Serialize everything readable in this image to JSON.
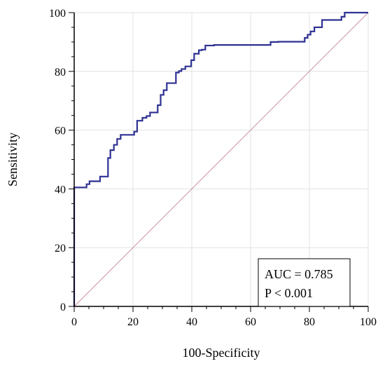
{
  "chart_data": {
    "type": "line",
    "title": "",
    "xlabel": "100-Specificity",
    "ylabel": "Sensitivity",
    "xlim": [
      0,
      100
    ],
    "ylim": [
      0,
      100
    ],
    "xticks": [
      0,
      20,
      40,
      60,
      80,
      100
    ],
    "yticks": [
      0,
      20,
      40,
      60,
      80,
      100
    ],
    "grid": true,
    "series": [
      {
        "name": "",
        "style": "step",
        "color": "#2e3192",
        "x": [
          0,
          0,
          4.2,
          4.2,
          5.2,
          5.2,
          8.8,
          8.8,
          11.5,
          11.5,
          12.3,
          12.3,
          13.5,
          13.5,
          14.6,
          14.6,
          15.8,
          15.8,
          20.4,
          20.4,
          21.4,
          21.4,
          23.2,
          23.2,
          24.6,
          24.6,
          25.8,
          25.8,
          28.4,
          28.4,
          29.4,
          29.4,
          30.4,
          30.4,
          31.5,
          31.5,
          34.6,
          34.6,
          35.6,
          35.6,
          36.5,
          36.5,
          37.8,
          37.8,
          39.8,
          39.8,
          40.8,
          40.8,
          42.4,
          42.4,
          43.4,
          43.4,
          44.6,
          44.6,
          47.6,
          47.6,
          66.8,
          66.8,
          69.4,
          69.4,
          78.4,
          78.4,
          79.4,
          79.4,
          80.4,
          80.4,
          81.7,
          81.7,
          84.3,
          84.3,
          90.9,
          90.9,
          92.0,
          92.0,
          93.0,
          93.0,
          100
        ],
        "y": [
          0,
          40.5,
          40.5,
          41.6,
          41.6,
          42.6,
          42.6,
          44.2,
          44.2,
          50.5,
          50.5,
          53.2,
          53.2,
          55.0,
          55.0,
          57.0,
          57.0,
          58.4,
          58.4,
          59.5,
          59.5,
          63.2,
          63.2,
          64.2,
          64.2,
          64.8,
          64.8,
          66.0,
          66.0,
          68.5,
          68.5,
          72.0,
          72.0,
          73.6,
          73.6,
          76.0,
          76.0,
          79.6,
          79.6,
          80.1,
          80.1,
          80.8,
          80.8,
          81.7,
          81.7,
          83.8,
          83.8,
          86.0,
          86.0,
          87.2,
          87.2,
          87.4,
          87.4,
          88.8,
          88.8,
          89.0,
          89.0,
          90.0,
          90.0,
          90.1,
          90.1,
          91.4,
          91.4,
          92.5,
          92.5,
          93.6,
          93.6,
          95.0,
          95.0,
          97.5,
          97.5,
          98.6,
          98.6,
          100,
          100,
          100,
          100
        ]
      }
    ],
    "reference_line": {
      "x": [
        0,
        100
      ],
      "y": [
        0,
        100
      ],
      "color": "#c9909b"
    },
    "annotations": {
      "auc_text": "AUC = 0.785",
      "p_text": "P < 0.001"
    }
  }
}
